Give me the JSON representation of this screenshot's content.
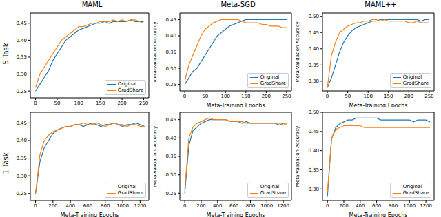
{
  "row_labels": [
    "5 Task",
    "1 Task"
  ],
  "chart_data": [
    {
      "type": "line",
      "title": "MAML",
      "xlim": [
        -12,
        262
      ],
      "ylim": [
        0.23,
        0.48
      ],
      "xticks": [
        0,
        50,
        100,
        150,
        200,
        250
      ],
      "yticks": [
        0.25,
        {
          "value": 0.3,
          "label": "0.30"
        },
        0.35,
        {
          "value": 0.4,
          "label": "0.40"
        },
        0.45
      ],
      "legend": "lower right",
      "x": [
        0,
        10,
        20,
        30,
        40,
        50,
        60,
        70,
        80,
        90,
        100,
        110,
        120,
        130,
        140,
        150,
        160,
        170,
        180,
        190,
        200,
        210,
        220,
        230,
        240,
        250
      ],
      "series": [
        {
          "name": "Original",
          "color": "#1f77b4",
          "values": [
            0.25,
            0.27,
            0.29,
            0.31,
            0.34,
            0.36,
            0.38,
            0.4,
            0.41,
            0.42,
            0.43,
            0.435,
            0.44,
            0.445,
            0.45,
            0.45,
            0.455,
            0.45,
            0.455,
            0.455,
            0.455,
            0.455,
            0.46,
            0.455,
            0.455,
            0.455
          ]
        },
        {
          "name": "GradShare",
          "color": "#ff7f0e",
          "values": [
            0.26,
            0.3,
            0.32,
            0.34,
            0.36,
            0.38,
            0.4,
            0.41,
            0.42,
            0.43,
            0.44,
            0.44,
            0.445,
            0.45,
            0.45,
            0.455,
            0.455,
            0.455,
            0.46,
            0.455,
            0.46,
            0.455,
            0.46,
            0.46,
            0.455,
            0.45
          ]
        }
      ]
    },
    {
      "type": "line",
      "title": "Meta-SGD",
      "x_label": "Meta-Training Epochs",
      "y_label": "Meta-Validation Accuracy",
      "xlim": [
        -12,
        262
      ],
      "ylim": [
        0.23,
        0.47
      ],
      "xticks": [
        0,
        50,
        100,
        150,
        200,
        250
      ],
      "yticks": [
        0.25,
        {
          "value": 0.3,
          "label": "0.30"
        },
        0.35,
        {
          "value": 0.4,
          "label": "0.40"
        },
        0.45
      ],
      "legend": "lower right",
      "x": [
        0,
        10,
        20,
        30,
        40,
        50,
        60,
        70,
        80,
        90,
        100,
        110,
        120,
        130,
        140,
        150,
        160,
        170,
        180,
        190,
        200,
        210,
        220,
        230,
        240,
        250
      ],
      "series": [
        {
          "name": "Original",
          "color": "#1f77b4",
          "values": [
            0.25,
            0.27,
            0.29,
            0.3,
            0.32,
            0.34,
            0.36,
            0.38,
            0.4,
            0.41,
            0.42,
            0.43,
            0.435,
            0.44,
            0.445,
            0.45,
            0.45,
            0.45,
            0.45,
            0.45,
            0.45,
            0.45,
            0.45,
            0.45,
            0.45,
            0.45
          ]
        },
        {
          "name": "GradShare",
          "color": "#ff7f0e",
          "values": [
            0.26,
            0.31,
            0.34,
            0.37,
            0.4,
            0.42,
            0.43,
            0.44,
            0.445,
            0.45,
            0.45,
            0.45,
            0.45,
            0.45,
            0.445,
            0.44,
            0.44,
            0.44,
            0.44,
            0.435,
            0.435,
            0.43,
            0.43,
            0.43,
            0.425,
            0.425
          ]
        }
      ]
    },
    {
      "type": "line",
      "title": "MAML++",
      "x_label": "Meta-Training Epochs",
      "y_label": "Meta-Validation Accuracy",
      "xlim": [
        -12,
        262
      ],
      "ylim": [
        0.27,
        0.51
      ],
      "xticks": [
        0,
        50,
        100,
        150,
        200,
        250
      ],
      "yticks": [
        {
          "value": 0.3,
          "label": "0.30"
        },
        0.35,
        {
          "value": 0.4,
          "label": "0.40"
        },
        0.45,
        {
          "value": 0.5,
          "label": "0.50"
        }
      ],
      "legend": "lower right",
      "x": [
        0,
        10,
        20,
        30,
        40,
        50,
        60,
        70,
        80,
        90,
        100,
        110,
        120,
        130,
        140,
        150,
        160,
        170,
        180,
        190,
        200,
        210,
        220,
        230,
        240,
        250
      ],
      "series": [
        {
          "name": "Original",
          "color": "#1f77b4",
          "values": [
            0.28,
            0.31,
            0.35,
            0.39,
            0.42,
            0.44,
            0.455,
            0.465,
            0.47,
            0.475,
            0.48,
            0.485,
            0.485,
            0.49,
            0.49,
            0.49,
            0.49,
            0.49,
            0.49,
            0.49,
            0.49,
            0.49,
            0.49,
            0.485,
            0.49,
            0.49
          ]
        },
        {
          "name": "GradShare",
          "color": "#ff7f0e",
          "values": [
            0.28,
            0.38,
            0.42,
            0.45,
            0.46,
            0.47,
            0.475,
            0.48,
            0.48,
            0.485,
            0.485,
            0.49,
            0.49,
            0.485,
            0.49,
            0.485,
            0.485,
            0.485,
            0.485,
            0.485,
            0.48,
            0.48,
            0.485,
            0.48,
            0.48,
            0.48
          ]
        }
      ]
    },
    {
      "type": "line",
      "x_label": "Meta-Training Epochs",
      "xlim": [
        -60,
        1300
      ],
      "ylim": [
        0.23,
        0.48
      ],
      "xticks": [
        0,
        200,
        400,
        600,
        800,
        1000,
        1200
      ],
      "yticks": [
        0.25,
        {
          "value": 0.3,
          "label": "0.30"
        },
        0.35,
        {
          "value": 0.4,
          "label": "0.40"
        },
        0.45
      ],
      "legend": "lower right",
      "x": [
        0,
        50,
        100,
        150,
        200,
        250,
        300,
        350,
        400,
        450,
        500,
        550,
        600,
        650,
        700,
        750,
        800,
        850,
        900,
        950,
        1000,
        1050,
        1100,
        1150,
        1200,
        1250
      ],
      "series": [
        {
          "name": "Original",
          "color": "#1f77b4",
          "values": [
            0.25,
            0.34,
            0.38,
            0.4,
            0.42,
            0.43,
            0.435,
            0.44,
            0.44,
            0.445,
            0.445,
            0.44,
            0.445,
            0.45,
            0.445,
            0.44,
            0.445,
            0.445,
            0.45,
            0.445,
            0.44,
            0.445,
            0.445,
            0.45,
            0.445,
            0.44
          ]
        },
        {
          "name": "GradShare",
          "color": "#ff7f0e",
          "values": [
            0.25,
            0.36,
            0.4,
            0.415,
            0.425,
            0.43,
            0.435,
            0.44,
            0.44,
            0.445,
            0.445,
            0.45,
            0.445,
            0.445,
            0.45,
            0.445,
            0.44,
            0.445,
            0.45,
            0.445,
            0.445,
            0.44,
            0.445,
            0.445,
            0.44,
            0.44
          ]
        }
      ]
    },
    {
      "type": "line",
      "x_label": "Meta-Training Epochs",
      "y_label": "Meta-Validation Accuracy",
      "xlim": [
        -60,
        1300
      ],
      "ylim": [
        0.23,
        0.47
      ],
      "xticks": [
        0,
        200,
        400,
        600,
        800,
        1000,
        1200
      ],
      "yticks": [
        0.25,
        {
          "value": 0.3,
          "label": "0.30"
        },
        0.35,
        {
          "value": 0.4,
          "label": "0.40"
        },
        0.45
      ],
      "legend": "lower right",
      "x": [
        0,
        50,
        100,
        150,
        200,
        250,
        300,
        350,
        400,
        450,
        500,
        550,
        600,
        650,
        700,
        750,
        800,
        850,
        900,
        950,
        1000,
        1050,
        1100,
        1150,
        1200,
        1250
      ],
      "series": [
        {
          "name": "Original",
          "color": "#1f77b4",
          "values": [
            0.25,
            0.38,
            0.42,
            0.43,
            0.44,
            0.445,
            0.45,
            0.45,
            0.45,
            0.45,
            0.45,
            0.445,
            0.445,
            0.445,
            0.44,
            0.445,
            0.44,
            0.44,
            0.44,
            0.44,
            0.44,
            0.44,
            0.44,
            0.435,
            0.44,
            0.44
          ]
        },
        {
          "name": "GradShare",
          "color": "#ff7f0e",
          "values": [
            0.26,
            0.4,
            0.43,
            0.44,
            0.445,
            0.45,
            0.455,
            0.45,
            0.45,
            0.45,
            0.45,
            0.445,
            0.445,
            0.445,
            0.445,
            0.44,
            0.44,
            0.44,
            0.44,
            0.44,
            0.44,
            0.44,
            0.44,
            0.44,
            0.435,
            0.44
          ]
        }
      ]
    },
    {
      "type": "line",
      "x_label": "Meta-Training Epochs",
      "y_label": "Meta-Validation Accuracy",
      "xlim": [
        -60,
        1300
      ],
      "ylim": [
        0.27,
        0.5
      ],
      "xticks": [
        0,
        200,
        400,
        600,
        800,
        1000,
        1200
      ],
      "yticks": [
        {
          "value": 0.3,
          "label": "0.30"
        },
        0.35,
        {
          "value": 0.4,
          "label": "0.40"
        },
        0.45,
        {
          "value": 0.5,
          "label": "0.50"
        }
      ],
      "legend": "lower right",
      "x": [
        0,
        50,
        100,
        150,
        200,
        250,
        300,
        350,
        400,
        450,
        500,
        550,
        600,
        650,
        700,
        750,
        800,
        850,
        900,
        950,
        1000,
        1050,
        1100,
        1150,
        1200,
        1250
      ],
      "series": [
        {
          "name": "Original",
          "color": "#1f77b4",
          "values": [
            0.28,
            0.43,
            0.46,
            0.47,
            0.475,
            0.48,
            0.48,
            0.485,
            0.485,
            0.485,
            0.485,
            0.485,
            0.485,
            0.48,
            0.48,
            0.48,
            0.48,
            0.48,
            0.48,
            0.48,
            0.48,
            0.475,
            0.48,
            0.48,
            0.48,
            0.475
          ]
        },
        {
          "name": "GradShare",
          "color": "#ff7f0e",
          "values": [
            0.29,
            0.43,
            0.455,
            0.46,
            0.465,
            0.465,
            0.465,
            0.465,
            0.465,
            0.46,
            0.46,
            0.46,
            0.46,
            0.46,
            0.46,
            0.46,
            0.46,
            0.46,
            0.46,
            0.46,
            0.46,
            0.46,
            0.46,
            0.46,
            0.46,
            0.46
          ]
        }
      ]
    }
  ]
}
